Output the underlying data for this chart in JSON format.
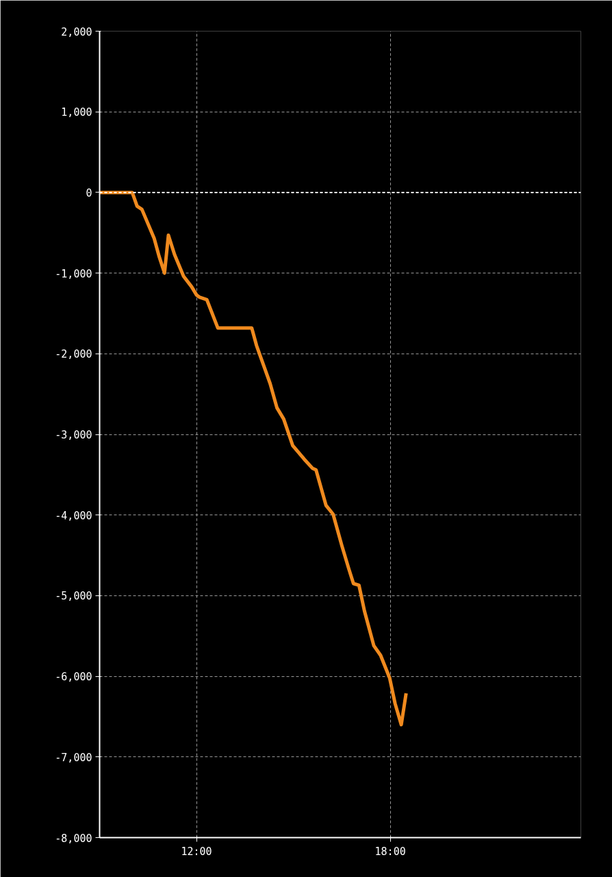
{
  "chart_data": {
    "type": "line",
    "x": [
      9.0,
      10.01,
      10.16,
      10.31,
      10.69,
      10.84,
      11.01,
      11.13,
      11.32,
      11.6,
      11.85,
      12.0,
      12.1,
      12.32,
      12.66,
      13.71,
      13.86,
      14.28,
      14.49,
      14.7,
      14.98,
      15.34,
      15.59,
      15.7,
      16.01,
      16.23,
      16.5,
      16.71,
      16.86,
      17.03,
      17.2,
      17.49,
      17.7,
      17.98,
      18.15,
      18.34,
      18.49
    ],
    "series": [
      {
        "color": "#f08a1e",
        "values": [
          0,
          0,
          -170,
          -210,
          -570,
          -790,
          -1000,
          -530,
          -770,
          -1040,
          -1170,
          -1270,
          -1300,
          -1330,
          -1680,
          -1680,
          -1900,
          -2370,
          -2670,
          -2810,
          -3140,
          -3310,
          -3420,
          -3440,
          -3880,
          -3990,
          -4380,
          -4660,
          -4850,
          -4870,
          -5190,
          -5620,
          -5740,
          -6020,
          -6340,
          -6600,
          -6210
        ]
      }
    ],
    "xlim": [
      9,
      23.9
    ],
    "xticks": [
      {
        "value": 12,
        "label": "12:00"
      },
      {
        "value": 18,
        "label": "18:00"
      }
    ],
    "ylim": [
      -8000,
      2000
    ],
    "yticks": [
      {
        "value": 2000,
        "label": "2,000"
      },
      {
        "value": 1000,
        "label": "1,000"
      },
      0,
      {
        "value": -1000,
        "label": "-1,000"
      },
      {
        "value": -2000,
        "label": "-2,000"
      },
      {
        "value": -3000,
        "label": "-3,000"
      },
      {
        "value": -4000,
        "label": "-4,000"
      },
      {
        "value": -5000,
        "label": "-5,000"
      },
      {
        "value": -6000,
        "label": "-6,000"
      },
      {
        "value": -7000,
        "label": "-7,000"
      },
      {
        "value": -8000,
        "label": "-8,000"
      }
    ],
    "grid": true,
    "ref_lines": [
      {
        "axis": "y",
        "value": 0,
        "color": "#ffffff",
        "line_style": "dashed"
      }
    ],
    "line_style": "solid",
    "marker": "none"
  }
}
